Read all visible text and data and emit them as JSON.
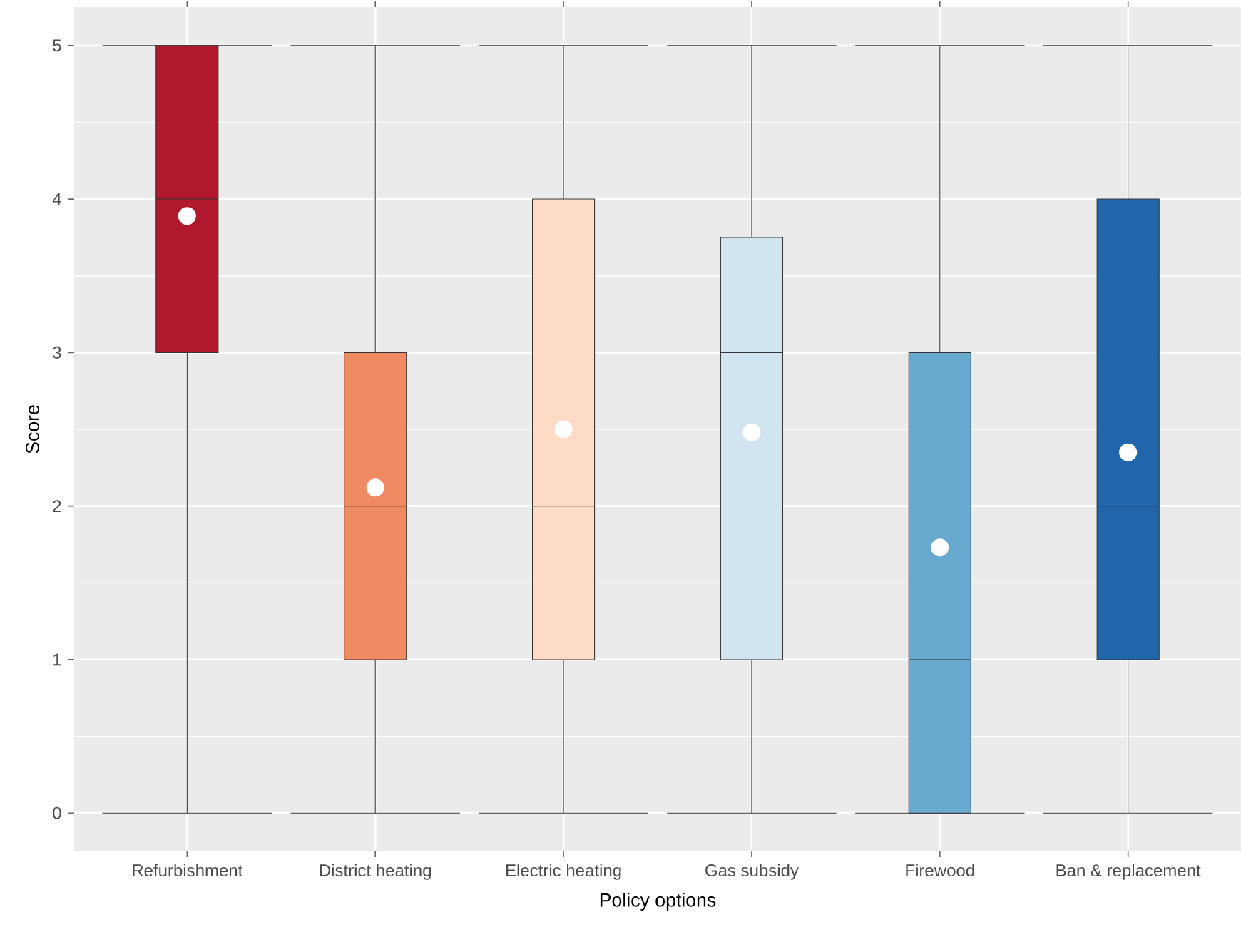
{
  "chart_data": {
    "type": "box",
    "xlabel": "Policy options",
    "ylabel": "Score",
    "categories": [
      "Refurbishment",
      "District heating",
      "Electric heating",
      "Gas subsidy",
      "Firewood",
      "Ban & replacement"
    ],
    "boxes": [
      {
        "low": 0,
        "q1": 3,
        "median": 4,
        "q3": 5,
        "high": 5,
        "mean": 3.89
      },
      {
        "low": 0,
        "q1": 1,
        "median": 2,
        "q3": 3,
        "high": 5,
        "mean": 2.12
      },
      {
        "low": 0,
        "q1": 1,
        "median": 2,
        "q3": 4,
        "high": 5,
        "mean": 2.5
      },
      {
        "low": 0,
        "q1": 1,
        "median": 3,
        "q3": 3.75,
        "high": 5,
        "mean": 2.48
      },
      {
        "low": 0,
        "q1": 0,
        "median": 1,
        "q3": 3,
        "high": 5,
        "mean": 1.73
      },
      {
        "low": 0,
        "q1": 1,
        "median": 2,
        "q3": 4,
        "high": 5,
        "mean": 2.35
      }
    ],
    "colors": [
      "#b2182b",
      "#ef8a62",
      "#fddbc7",
      "#d1e5f0",
      "#67a9cf",
      "#2166ac"
    ],
    "ylim": [
      -0.25,
      5.25
    ],
    "yticks": [
      0,
      1,
      2,
      3,
      4,
      5
    ],
    "grid": true
  }
}
